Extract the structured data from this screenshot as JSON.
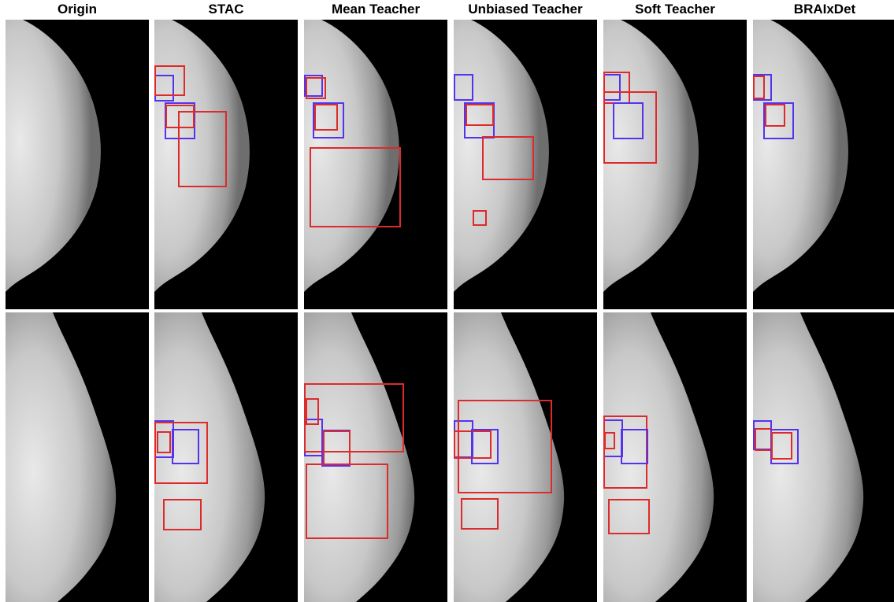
{
  "columns": [
    "Origin",
    "STAC",
    "Mean Teacher",
    "Unbiased Teacher",
    "Soft Teacher",
    "BRAIxDet"
  ],
  "colors": {
    "ground_truth_box": "#5533ee",
    "prediction_box": "#dd2a2a",
    "background": "#000000",
    "tissue": "#e6e6e6"
  }
}
